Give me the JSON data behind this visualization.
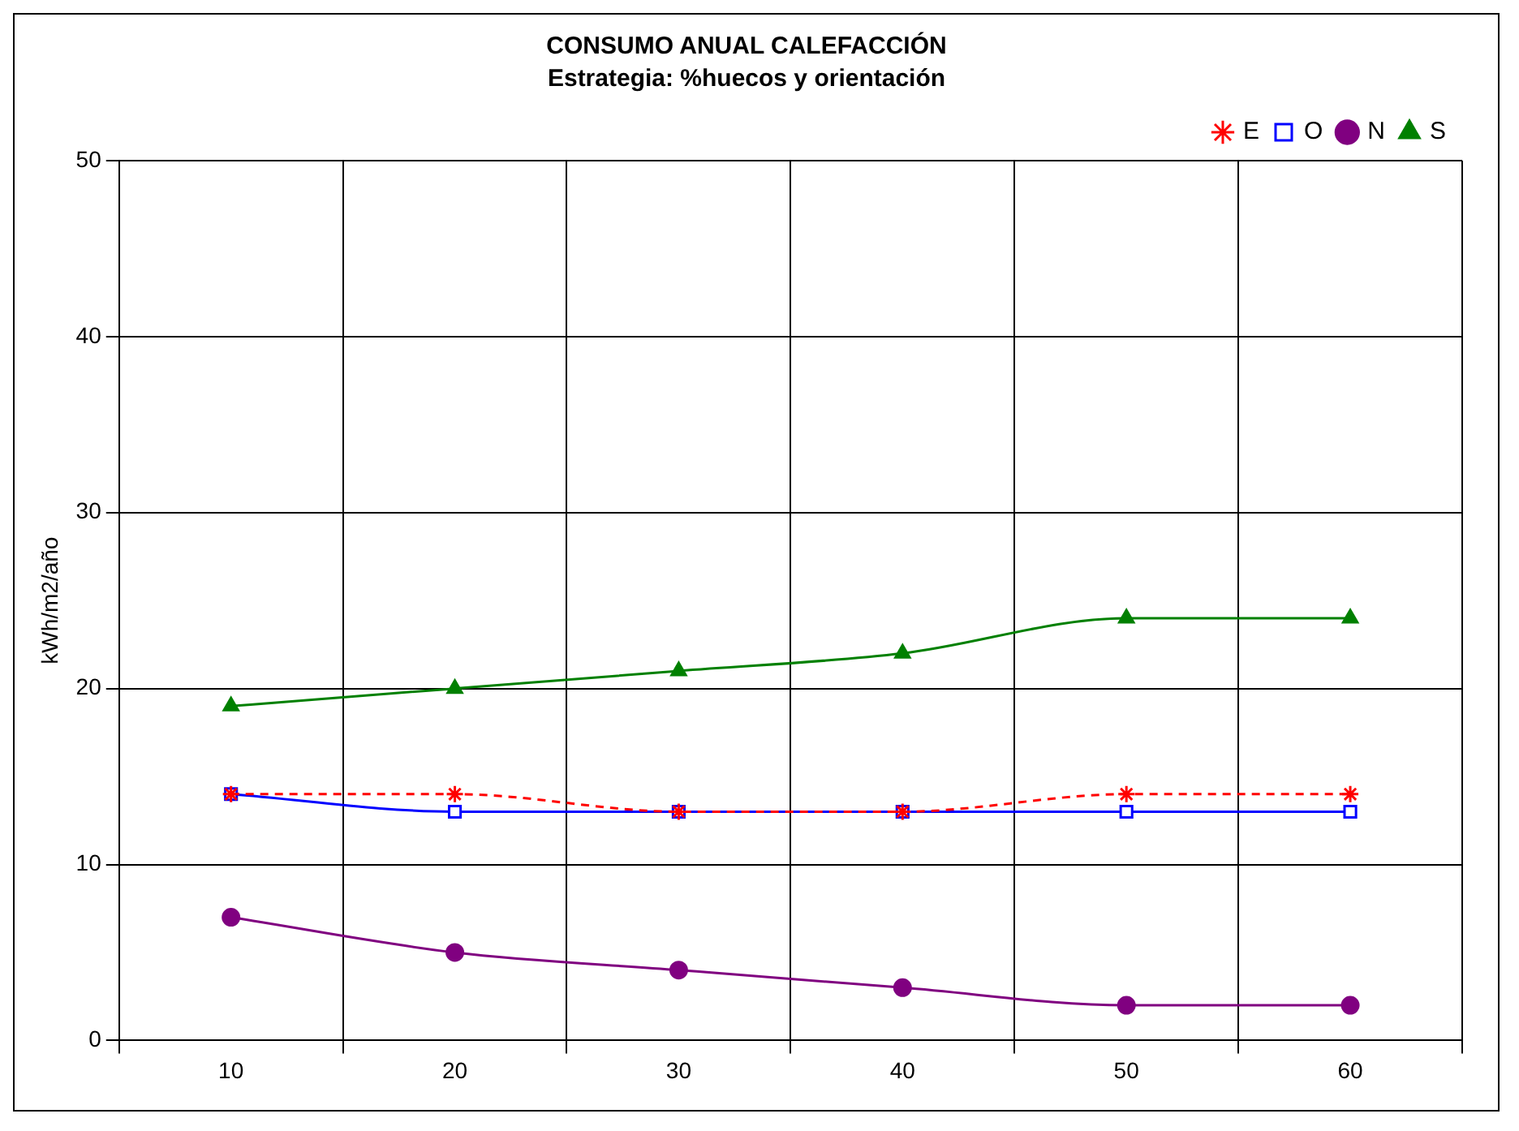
{
  "chart_data": {
    "type": "line",
    "title": "CONSUMO ANUAL CALEFACCIÓN",
    "subtitle": "Estrategia: %huecos y orientación",
    "ylabel": "kWh/m2/año",
    "categories": [
      "10",
      "20",
      "30",
      "40",
      "50",
      "60"
    ],
    "ylim": [
      0,
      50
    ],
    "yticks": [
      0,
      10,
      20,
      30,
      40,
      50
    ],
    "grid": true,
    "legend": "top right",
    "series": [
      {
        "name": "E",
        "color": "#ff0000",
        "values": [
          14,
          14,
          13,
          13,
          14,
          14
        ],
        "marker": "cross",
        "line_style": "dashed"
      },
      {
        "name": "O",
        "color": "#0000ff",
        "values": [
          14,
          13,
          13,
          13,
          13,
          13
        ],
        "marker": "square",
        "line_style": "solid"
      },
      {
        "name": "N",
        "color": "#800080",
        "values": [
          7,
          5,
          4,
          3,
          2,
          2
        ],
        "marker": "circle",
        "line_style": "solid"
      },
      {
        "name": "S",
        "color": "#008000",
        "values": [
          19,
          20,
          21,
          22,
          24,
          24
        ],
        "marker": "triangle",
        "line_style": "solid"
      }
    ]
  }
}
